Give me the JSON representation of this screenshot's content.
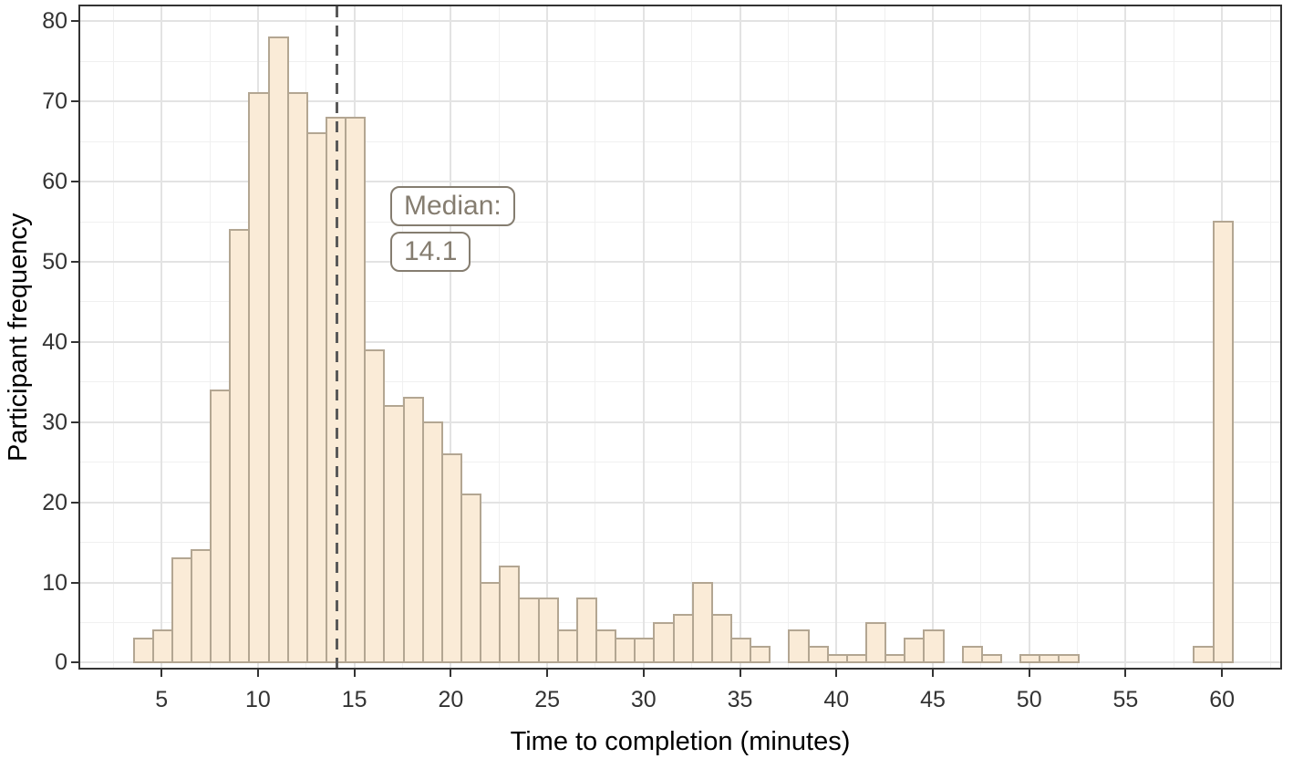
{
  "chart_data": {
    "type": "bar",
    "subtype": "histogram",
    "title": "",
    "xlabel": "Time to completion (minutes)",
    "ylabel": "Participant frequency",
    "bin_width": 1,
    "bin_centers": [
      4,
      5,
      6,
      7,
      8,
      9,
      10,
      11,
      12,
      13,
      14,
      15,
      16,
      17,
      18,
      19,
      20,
      21,
      22,
      23,
      24,
      25,
      26,
      27,
      28,
      29,
      30,
      31,
      32,
      33,
      34,
      35,
      36,
      37,
      38,
      39,
      40,
      41,
      42,
      43,
      44,
      45,
      46,
      47,
      48,
      49,
      50,
      51,
      52,
      53,
      54,
      55,
      56,
      57,
      58,
      59,
      60
    ],
    "values": [
      3,
      4,
      13,
      14,
      34,
      54,
      71,
      78,
      71,
      66,
      68,
      68,
      39,
      32,
      33,
      30,
      26,
      21,
      10,
      12,
      8,
      8,
      4,
      8,
      4,
      3,
      3,
      5,
      6,
      10,
      6,
      3,
      2,
      0,
      4,
      2,
      1,
      1,
      5,
      1,
      3,
      4,
      0,
      2,
      1,
      0,
      1,
      1,
      1,
      0,
      0,
      0,
      0,
      0,
      0,
      2,
      55
    ],
    "x_ticks": [
      5,
      10,
      15,
      20,
      25,
      30,
      35,
      40,
      45,
      50,
      55,
      60
    ],
    "y_ticks": [
      0,
      10,
      20,
      30,
      40,
      50,
      60,
      70,
      80
    ],
    "xlim": [
      0.78,
      63.02
    ],
    "ylim": [
      -0.63,
      81.85
    ],
    "grid": true,
    "legend": "none",
    "median_line": {
      "x": 14.1,
      "title": "Median:",
      "value": "14.1"
    },
    "colors": {
      "bar_fill": "#FAEBD7",
      "bar_stroke": "#B3A692",
      "median_line": "#5A5A5A",
      "median_label": "#857D70",
      "axis": "#333333",
      "grid_major": "#E3E3E3",
      "grid_minor": "#F0F0F0"
    }
  }
}
